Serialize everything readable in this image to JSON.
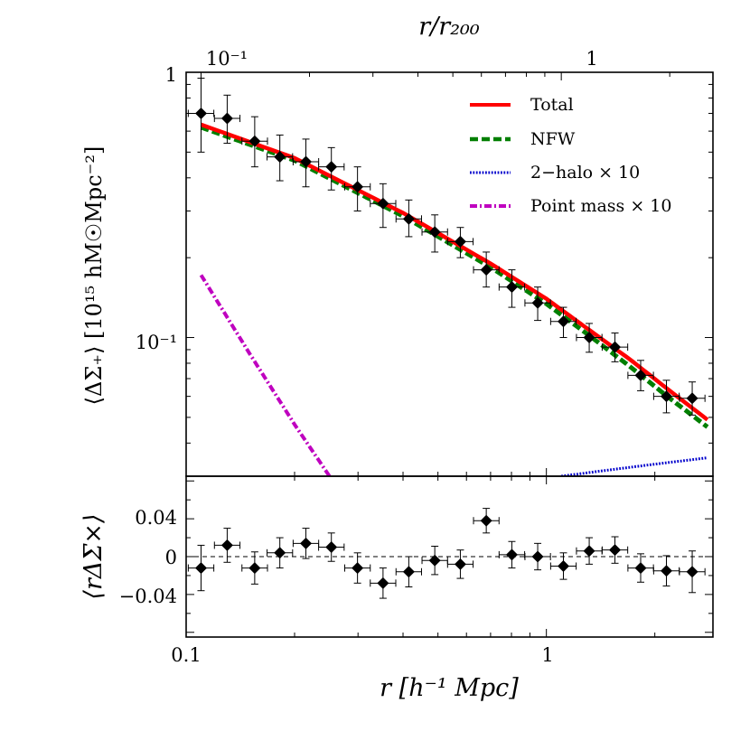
{
  "chart_data": [
    {
      "type": "scatter",
      "panel": "top",
      "x_scale": "log",
      "y_scale": "log",
      "xlim": [
        0.1,
        2.9
      ],
      "ylim": [
        0.03,
        1.0
      ],
      "ylabel": "⟨ΔΣ₊⟩ [10¹⁵ hM☉Mpc⁻²]",
      "top_axis_label": "r/r₂₀₀",
      "top_axis_ticks": [
        {
          "label": "10⁻¹",
          "x": 0.11
        },
        {
          "label": "1",
          "x": 1.1
        }
      ],
      "y_ticks": [
        {
          "label": "1",
          "value": 1.0
        },
        {
          "label": "10⁻¹",
          "value": 0.1
        }
      ],
      "legend_position": "top-right",
      "legend": [
        "Total",
        "NFW",
        "2−halo × 10",
        "Point mass × 10"
      ],
      "points": {
        "x": [
          0.11,
          0.13,
          0.155,
          0.182,
          0.215,
          0.253,
          0.299,
          0.352,
          0.415,
          0.49,
          0.577,
          0.681,
          0.802,
          0.946,
          1.115,
          1.315,
          1.55,
          1.827,
          2.154,
          2.54
        ],
        "y": [
          0.7,
          0.67,
          0.55,
          0.48,
          0.46,
          0.44,
          0.37,
          0.32,
          0.28,
          0.25,
          0.23,
          0.18,
          0.155,
          0.135,
          0.115,
          0.1,
          0.092,
          0.072,
          0.06,
          0.059
        ],
        "yerr_hi": [
          0.95,
          0.82,
          0.68,
          0.58,
          0.56,
          0.52,
          0.44,
          0.38,
          0.33,
          0.29,
          0.26,
          0.21,
          0.18,
          0.155,
          0.13,
          0.113,
          0.104,
          0.082,
          0.069,
          0.068
        ],
        "yerr_lo": [
          0.5,
          0.54,
          0.44,
          0.39,
          0.37,
          0.36,
          0.3,
          0.26,
          0.24,
          0.21,
          0.2,
          0.155,
          0.13,
          0.116,
          0.1,
          0.088,
          0.081,
          0.063,
          0.052,
          0.051
        ],
        "xerr_factor": 1.085
      },
      "series": [
        {
          "name": "Total",
          "style": "solid",
          "color": "#ff0000",
          "x": [
            0.11,
            0.2,
            0.4,
            0.7,
            1.0,
            1.3,
            1.7,
            2.2,
            2.8
          ],
          "values": [
            0.635,
            0.475,
            0.295,
            0.19,
            0.14,
            0.108,
            0.083,
            0.063,
            0.049
          ]
        },
        {
          "name": "NFW",
          "style": "dashed",
          "color": "#007f00",
          "x": [
            0.11,
            0.2,
            0.4,
            0.7,
            1.0,
            1.3,
            1.7,
            2.2,
            2.8
          ],
          "values": [
            0.62,
            0.465,
            0.287,
            0.184,
            0.134,
            0.103,
            0.078,
            0.059,
            0.046
          ]
        },
        {
          "name": "2−halo × 10",
          "style": "dotted",
          "color": "#0000cc",
          "x": [
            1.1,
            1.5,
            2.0,
            2.8
          ],
          "values": [
            0.03,
            0.0317,
            0.0333,
            0.0352
          ]
        },
        {
          "name": "Point mass × 10",
          "style": "dashdot",
          "color": "#bf00bf",
          "x": [
            0.11,
            0.15,
            0.2,
            0.25
          ],
          "values": [
            0.172,
            0.087,
            0.047,
            0.03
          ]
        }
      ]
    },
    {
      "type": "scatter",
      "panel": "bottom",
      "x_scale": "log",
      "xlim": [
        0.1,
        2.9
      ],
      "ylim": [
        -0.085,
        0.085
      ],
      "xlabel": "r [h⁻¹ Mpc]",
      "ylabel": "⟨rΔΣ×⟩",
      "x_ticks": [
        {
          "label": "0.1",
          "value": 0.1
        },
        {
          "label": "1",
          "value": 1.0
        }
      ],
      "y_ticks": [
        {
          "label": "0.04",
          "value": 0.04
        },
        {
          "label": "0",
          "value": 0.0
        },
        {
          "label": "−0.04",
          "value": -0.04
        }
      ],
      "reference_line": 0,
      "points": {
        "x": [
          0.11,
          0.13,
          0.155,
          0.182,
          0.215,
          0.253,
          0.299,
          0.352,
          0.415,
          0.49,
          0.577,
          0.681,
          0.802,
          0.946,
          1.115,
          1.315,
          1.55,
          1.827,
          2.154,
          2.54
        ],
        "y": [
          -0.012,
          0.012,
          -0.012,
          0.004,
          0.014,
          0.01,
          -0.012,
          -0.028,
          -0.016,
          -0.004,
          -0.008,
          0.038,
          0.002,
          0.0,
          -0.01,
          0.006,
          0.007,
          -0.012,
          -0.015,
          -0.016
        ],
        "yerr": [
          0.024,
          0.018,
          0.017,
          0.016,
          0.016,
          0.015,
          0.016,
          0.016,
          0.016,
          0.015,
          0.015,
          0.013,
          0.014,
          0.014,
          0.014,
          0.014,
          0.014,
          0.015,
          0.016,
          0.022
        ],
        "xerr_factor": 1.085
      }
    }
  ]
}
